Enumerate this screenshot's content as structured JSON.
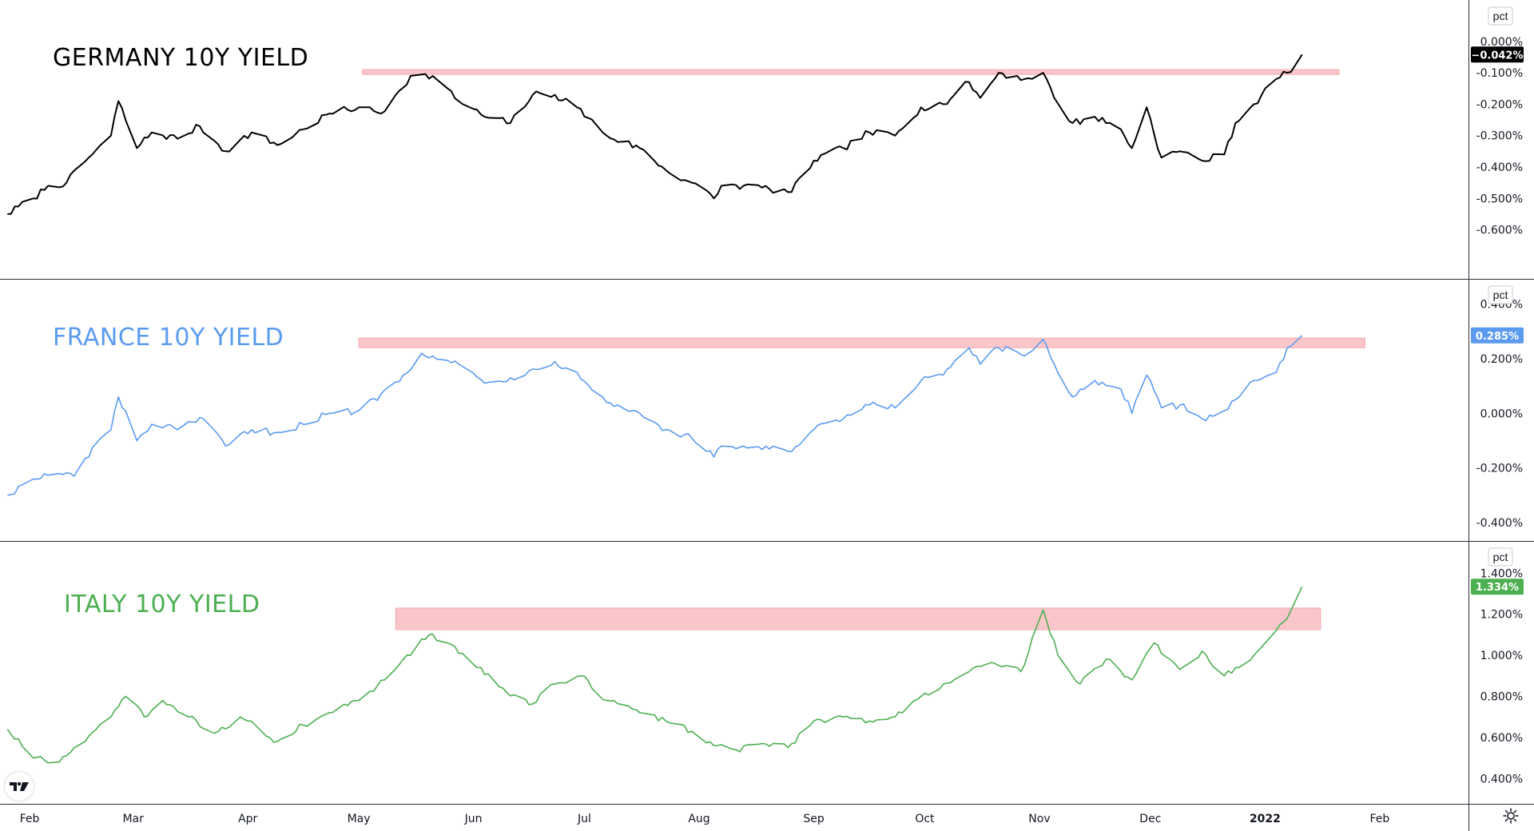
{
  "x_axis": {
    "labels": [
      {
        "text": "Feb",
        "at": "2021-01-31"
      },
      {
        "text": "Mar",
        "at": "2021-02-28"
      },
      {
        "text": "Apr",
        "at": "2021-03-31"
      },
      {
        "text": "May",
        "at": "2021-04-30"
      },
      {
        "text": "Jun",
        "at": "2021-05-31"
      },
      {
        "text": "Jul",
        "at": "2021-06-30"
      },
      {
        "text": "Aug",
        "at": "2021-07-31"
      },
      {
        "text": "Sep",
        "at": "2021-08-31"
      },
      {
        "text": "Oct",
        "at": "2021-09-30"
      },
      {
        "text": "Nov",
        "at": "2021-10-31"
      },
      {
        "text": "Dec",
        "at": "2021-11-30"
      },
      {
        "text": "2022",
        "at": "2021-12-31",
        "bold": true
      },
      {
        "text": "Feb",
        "at": "2022-01-31"
      }
    ],
    "range": [
      "2021-01-23",
      "2022-02-24"
    ]
  },
  "chart_data": [
    {
      "type": "line",
      "title": "GERMANY 10Y YIELD",
      "title_color": "#000000",
      "unit": "pct",
      "series": [
        {
          "color": "#000000"
        }
      ],
      "last_value_label": "−0.042%",
      "label_bg": "#000000",
      "ylim": [
        -0.68,
        0.03
      ],
      "yticks": [
        "0.000%",
        "-0.100%",
        "-0.200%",
        "-0.300%",
        "-0.400%",
        "-0.500%",
        "-0.600%"
      ],
      "ytick_values": [
        0.0,
        -0.1,
        -0.2,
        -0.3,
        -0.4,
        -0.5,
        -0.6
      ],
      "resistance_band": {
        "from": "2021-05-01",
        "to": "2022-01-20",
        "low": -0.105,
        "high": -0.09,
        "color": "#f9c6ca"
      },
      "keypoints": [
        [
          "2021-01-25",
          -0.55
        ],
        [
          "2021-02-01",
          -0.5
        ],
        [
          "2021-02-05",
          -0.46
        ],
        [
          "2021-02-10",
          -0.45
        ],
        [
          "2021-02-16",
          -0.37
        ],
        [
          "2021-02-22",
          -0.3
        ],
        [
          "2021-02-24",
          -0.19
        ],
        [
          "2021-03-01",
          -0.34
        ],
        [
          "2021-03-05",
          -0.29
        ],
        [
          "2021-03-12",
          -0.31
        ],
        [
          "2021-03-18",
          -0.27
        ],
        [
          "2021-03-25",
          -0.35
        ],
        [
          "2021-04-01",
          -0.29
        ],
        [
          "2021-04-08",
          -0.33
        ],
        [
          "2021-04-15",
          -0.28
        ],
        [
          "2021-04-22",
          -0.23
        ],
        [
          "2021-04-30",
          -0.21
        ],
        [
          "2021-05-06",
          -0.23
        ],
        [
          "2021-05-10",
          -0.17
        ],
        [
          "2021-05-14",
          -0.11
        ],
        [
          "2021-05-20",
          -0.11
        ],
        [
          "2021-05-27",
          -0.19
        ],
        [
          "2021-06-03",
          -0.24
        ],
        [
          "2021-06-10",
          -0.26
        ],
        [
          "2021-06-16",
          -0.17
        ],
        [
          "2021-06-22",
          -0.17
        ],
        [
          "2021-06-28",
          -0.21
        ],
        [
          "2021-07-06",
          -0.3
        ],
        [
          "2021-07-15",
          -0.34
        ],
        [
          "2021-07-22",
          -0.41
        ],
        [
          "2021-07-29",
          -0.45
        ],
        [
          "2021-08-04",
          -0.5
        ],
        [
          "2021-08-06",
          -0.46
        ],
        [
          "2021-08-12",
          -0.46
        ],
        [
          "2021-08-19",
          -0.47
        ],
        [
          "2021-08-25",
          -0.48
        ],
        [
          "2021-08-31",
          -0.38
        ],
        [
          "2021-09-08",
          -0.34
        ],
        [
          "2021-09-15",
          -0.29
        ],
        [
          "2021-09-22",
          -0.3
        ],
        [
          "2021-09-29",
          -0.21
        ],
        [
          "2021-10-05",
          -0.2
        ],
        [
          "2021-10-12",
          -0.13
        ],
        [
          "2021-10-15",
          -0.18
        ],
        [
          "2021-10-20",
          -0.1
        ],
        [
          "2021-10-27",
          -0.12
        ],
        [
          "2021-11-01",
          -0.1
        ],
        [
          "2021-11-04",
          -0.18
        ],
        [
          "2021-11-09",
          -0.26
        ],
        [
          "2021-11-15",
          -0.24
        ],
        [
          "2021-11-22",
          -0.28
        ],
        [
          "2021-11-25",
          -0.34
        ],
        [
          "2021-11-29",
          -0.21
        ],
        [
          "2021-12-03",
          -0.37
        ],
        [
          "2021-12-08",
          -0.35
        ],
        [
          "2021-12-14",
          -0.38
        ],
        [
          "2021-12-20",
          -0.36
        ],
        [
          "2021-12-23",
          -0.26
        ],
        [
          "2021-12-28",
          -0.2
        ],
        [
          "2022-01-03",
          -0.12
        ],
        [
          "2022-01-06",
          -0.1
        ],
        [
          "2022-01-10",
          -0.042
        ]
      ]
    },
    {
      "type": "line",
      "title": "FRANCE 10Y YIELD",
      "title_color": "#5b9bef",
      "unit": "pct",
      "series": [
        {
          "color": "#5b9bef"
        }
      ],
      "last_value_label": "0.285%",
      "label_bg": "#5b9bef",
      "ylim": [
        -0.42,
        0.41
      ],
      "yticks": [
        "0.400%",
        "0.200%",
        "0.000%",
        "-0.200%",
        "-0.400%"
      ],
      "ytick_values": [
        0.4,
        0.2,
        0.0,
        -0.2,
        -0.4
      ],
      "resistance_band": {
        "from": "2021-04-30",
        "to": "2022-01-27",
        "low": 0.24,
        "high": 0.275,
        "color": "#f9c6ca"
      },
      "keypoints": [
        [
          "2021-01-25",
          -0.3
        ],
        [
          "2021-02-01",
          -0.24
        ],
        [
          "2021-02-08",
          -0.22
        ],
        [
          "2021-02-12",
          -0.23
        ],
        [
          "2021-02-18",
          -0.11
        ],
        [
          "2021-02-22",
          -0.06
        ],
        [
          "2021-02-24",
          0.06
        ],
        [
          "2021-03-01",
          -0.1
        ],
        [
          "2021-03-05",
          -0.04
        ],
        [
          "2021-03-12",
          -0.06
        ],
        [
          "2021-03-19",
          -0.02
        ],
        [
          "2021-03-25",
          -0.12
        ],
        [
          "2021-04-01",
          -0.06
        ],
        [
          "2021-04-08",
          -0.07
        ],
        [
          "2021-04-15",
          -0.04
        ],
        [
          "2021-04-22",
          0.0
        ],
        [
          "2021-04-30",
          0.01
        ],
        [
          "2021-05-06",
          0.07
        ],
        [
          "2021-05-12",
          0.14
        ],
        [
          "2021-05-17",
          0.22
        ],
        [
          "2021-05-20",
          0.21
        ],
        [
          "2021-05-27",
          0.18
        ],
        [
          "2021-06-03",
          0.11
        ],
        [
          "2021-06-10",
          0.13
        ],
        [
          "2021-06-17",
          0.16
        ],
        [
          "2021-06-22",
          0.19
        ],
        [
          "2021-06-28",
          0.15
        ],
        [
          "2021-07-06",
          0.04
        ],
        [
          "2021-07-15",
          0.0
        ],
        [
          "2021-07-22",
          -0.06
        ],
        [
          "2021-07-29",
          -0.09
        ],
        [
          "2021-08-04",
          -0.16
        ],
        [
          "2021-08-06",
          -0.12
        ],
        [
          "2021-08-12",
          -0.12
        ],
        [
          "2021-08-19",
          -0.13
        ],
        [
          "2021-08-25",
          -0.14
        ],
        [
          "2021-08-31",
          -0.06
        ],
        [
          "2021-09-08",
          -0.02
        ],
        [
          "2021-09-15",
          0.03
        ],
        [
          "2021-09-22",
          0.02
        ],
        [
          "2021-09-29",
          0.12
        ],
        [
          "2021-10-05",
          0.14
        ],
        [
          "2021-10-12",
          0.24
        ],
        [
          "2021-10-15",
          0.18
        ],
        [
          "2021-10-20",
          0.24
        ],
        [
          "2021-10-27",
          0.21
        ],
        [
          "2021-11-01",
          0.27
        ],
        [
          "2021-11-04",
          0.18
        ],
        [
          "2021-11-09",
          0.06
        ],
        [
          "2021-11-15",
          0.12
        ],
        [
          "2021-11-22",
          0.09
        ],
        [
          "2021-11-25",
          0.0
        ],
        [
          "2021-11-29",
          0.14
        ],
        [
          "2021-12-03",
          0.02
        ],
        [
          "2021-12-08",
          0.03
        ],
        [
          "2021-12-14",
          -0.02
        ],
        [
          "2021-12-20",
          0.01
        ],
        [
          "2021-12-23",
          0.05
        ],
        [
          "2021-12-28",
          0.12
        ],
        [
          "2022-01-03",
          0.15
        ],
        [
          "2022-01-06",
          0.24
        ],
        [
          "2022-01-10",
          0.285
        ]
      ]
    },
    {
      "type": "line",
      "title": "ITALY 10Y YIELD",
      "title_color": "#4caf50",
      "unit": "pct",
      "series": [
        {
          "color": "#4caf50"
        }
      ],
      "last_value_label": "1.334%",
      "label_bg": "#4caf50",
      "ylim": [
        0.37,
        1.44
      ],
      "yticks": [
        "1.400%",
        "1.200%",
        "1.000%",
        "0.800%",
        "0.600%",
        "0.400%"
      ],
      "ytick_values": [
        1.4,
        1.2,
        1.0,
        0.8,
        0.6,
        0.4
      ],
      "resistance_band": {
        "from": "2021-05-10",
        "to": "2022-01-15",
        "low": 1.125,
        "high": 1.23,
        "color": "#f9c6ca"
      },
      "keypoints": [
        [
          "2021-01-25",
          0.64
        ],
        [
          "2021-02-01",
          0.5
        ],
        [
          "2021-02-08",
          0.48
        ],
        [
          "2021-02-15",
          0.58
        ],
        [
          "2021-02-22",
          0.7
        ],
        [
          "2021-02-26",
          0.8
        ],
        [
          "2021-03-03",
          0.7
        ],
        [
          "2021-03-08",
          0.78
        ],
        [
          "2021-03-15",
          0.7
        ],
        [
          "2021-03-22",
          0.62
        ],
        [
          "2021-03-29",
          0.7
        ],
        [
          "2021-04-08",
          0.58
        ],
        [
          "2021-04-15",
          0.66
        ],
        [
          "2021-04-22",
          0.72
        ],
        [
          "2021-04-30",
          0.78
        ],
        [
          "2021-05-07",
          0.88
        ],
        [
          "2021-05-12",
          0.98
        ],
        [
          "2021-05-19",
          1.1
        ],
        [
          "2021-05-24",
          1.06
        ],
        [
          "2021-06-01",
          0.94
        ],
        [
          "2021-06-08",
          0.84
        ],
        [
          "2021-06-15",
          0.76
        ],
        [
          "2021-06-22",
          0.86
        ],
        [
          "2021-06-29",
          0.9
        ],
        [
          "2021-07-06",
          0.78
        ],
        [
          "2021-07-15",
          0.72
        ],
        [
          "2021-07-22",
          0.68
        ],
        [
          "2021-07-29",
          0.63
        ],
        [
          "2021-08-04",
          0.56
        ],
        [
          "2021-08-10",
          0.54
        ],
        [
          "2021-08-17",
          0.57
        ],
        [
          "2021-08-24",
          0.55
        ],
        [
          "2021-08-31",
          0.68
        ],
        [
          "2021-09-08",
          0.7
        ],
        [
          "2021-09-15",
          0.68
        ],
        [
          "2021-09-22",
          0.7
        ],
        [
          "2021-09-29",
          0.8
        ],
        [
          "2021-10-05",
          0.86
        ],
        [
          "2021-10-12",
          0.92
        ],
        [
          "2021-10-19",
          0.96
        ],
        [
          "2021-10-26",
          0.92
        ],
        [
          "2021-11-01",
          1.22
        ],
        [
          "2021-11-05",
          1.0
        ],
        [
          "2021-11-11",
          0.86
        ],
        [
          "2021-11-18",
          0.98
        ],
        [
          "2021-11-25",
          0.88
        ],
        [
          "2021-12-01",
          1.06
        ],
        [
          "2021-12-08",
          0.93
        ],
        [
          "2021-12-14",
          1.02
        ],
        [
          "2021-12-20",
          0.9
        ],
        [
          "2021-12-28",
          1.0
        ],
        [
          "2022-01-03",
          1.12
        ],
        [
          "2022-01-06",
          1.18
        ],
        [
          "2022-01-10",
          1.334
        ]
      ]
    }
  ]
}
